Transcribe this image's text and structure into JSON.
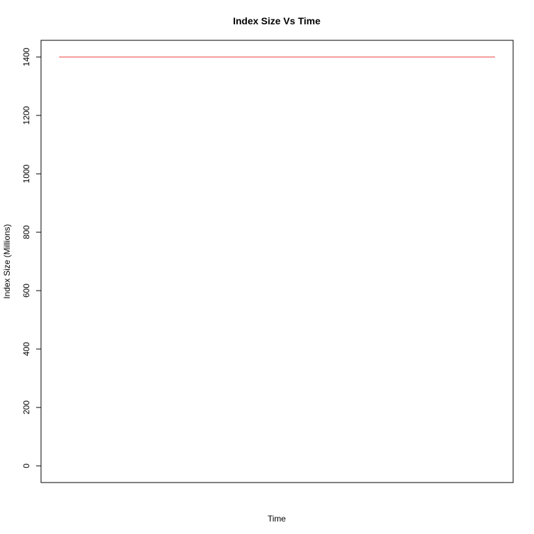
{
  "chart_data": {
    "type": "line",
    "title": "Index Size Vs Time",
    "xlabel": "Time",
    "ylabel": "Index Size (Millions)",
    "ylim": [
      0,
      1400
    ],
    "yticks": [
      0,
      200,
      400,
      600,
      800,
      1000,
      1200,
      1400
    ],
    "x_ticks_shown": false,
    "grid": false,
    "legend": "none",
    "series": [
      {
        "color": "#e8393a",
        "x": [
          0,
          1
        ],
        "y": [
          1400,
          1400
        ]
      }
    ]
  }
}
